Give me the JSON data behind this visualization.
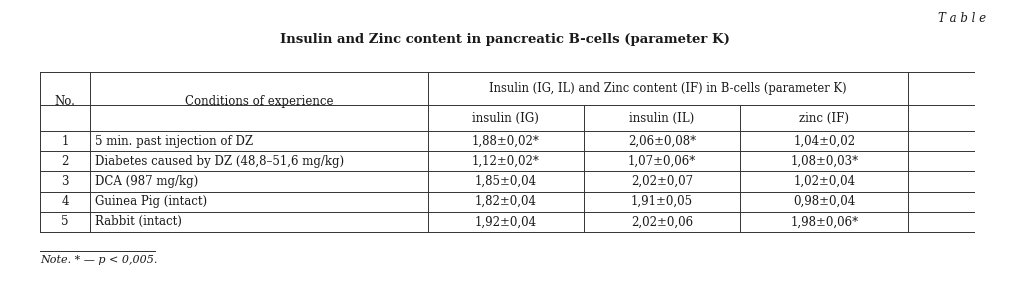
{
  "title": "Insulin and Zinc content in pancreatic B-cells (parameter K)",
  "table_label": "T a b l e",
  "header_span": "Insulin (IG, IL) and Zinc content (IF) in B-cells (parameter K)",
  "subheaders": [
    "insulin (IG)",
    "insulin (IL)",
    "zinc (IF)"
  ],
  "col_headers": [
    "No.",
    "Conditions of experience"
  ],
  "rows": [
    [
      "1",
      "5 min. past injection of DZ",
      "1,88±0,02*",
      "2,06±0,08*",
      "1,04±0,02"
    ],
    [
      "2",
      "Diabetes caused by DZ (48,8–51,6 mg/kg)",
      "1,12±0,02*",
      "1,07±0,06*",
      "1,08±0,03*"
    ],
    [
      "3",
      "DCA (987 mg/kg)",
      "1,85±0,04",
      "2,02±0,07",
      "1,02±0,04"
    ],
    [
      "4",
      "Guinea Pig (intact)",
      "1,82±0,04",
      "1,91±0,05",
      "0,98±0,04"
    ],
    [
      "5",
      "Rabbit (intact)",
      "1,92±0,04",
      "2,02±0,06",
      "1,98±0,06*"
    ]
  ],
  "note": "Note. * — p < 0,005.",
  "bg_color": "#ffffff",
  "text_color": "#1a1a1a",
  "font_size": 8.5,
  "title_font_size": 9.5
}
